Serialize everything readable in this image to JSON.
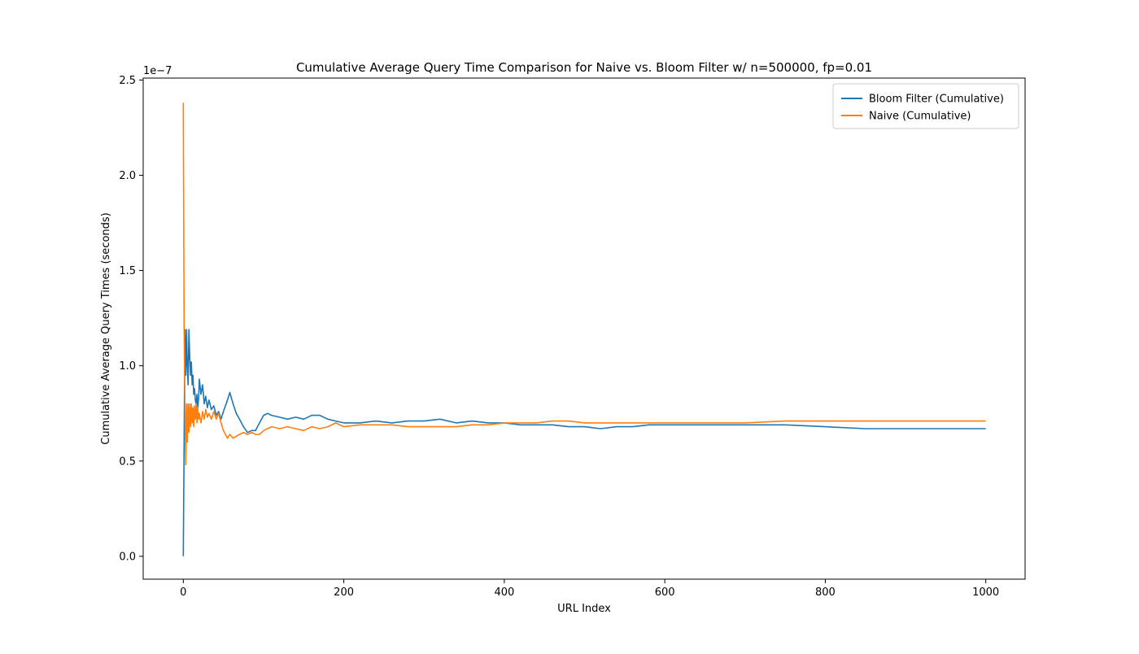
{
  "chart_data": {
    "type": "line",
    "title": "Cumulative Average Query Time Comparison for Naive vs. Bloom Filter w/ n=500000, fp=0.01",
    "xlabel": "URL Index",
    "ylabel": "Cumulative Average Query Times  (seconds)",
    "y_offset_label": "1e−7",
    "xlim": [
      -50,
      1049
    ],
    "ylim": [
      -0.12,
      2.51
    ],
    "x_ticks": [
      0,
      200,
      400,
      600,
      800,
      1000
    ],
    "x_tick_labels": [
      "0",
      "200",
      "400",
      "600",
      "800",
      "1000"
    ],
    "y_ticks": [
      0,
      0.5,
      1.0,
      1.5,
      2.0,
      2.5
    ],
    "y_tick_labels": [
      "0.0",
      "0.5",
      "1.0",
      "1.5",
      "2.0",
      "2.5"
    ],
    "y_scale_note": "values are in units of 1e-7 seconds",
    "grid": false,
    "legend_position": "top-right",
    "series": [
      {
        "name": "Bloom Filter (Cumulative)",
        "color": "#1f77b4",
        "x": [
          0,
          1,
          2,
          3,
          4,
          5,
          6,
          7,
          8,
          9,
          10,
          11,
          12,
          13,
          14,
          15,
          16,
          17,
          18,
          19,
          20,
          22,
          24,
          26,
          28,
          30,
          32,
          35,
          38,
          41,
          44,
          47,
          50,
          55,
          58,
          62,
          66,
          70,
          75,
          80,
          85,
          90,
          95,
          100,
          105,
          110,
          120,
          130,
          140,
          150,
          160,
          170,
          180,
          190,
          200,
          220,
          240,
          260,
          280,
          300,
          320,
          340,
          360,
          380,
          400,
          420,
          440,
          460,
          480,
          500,
          520,
          540,
          560,
          580,
          600,
          650,
          700,
          750,
          800,
          850,
          900,
          950,
          1000
        ],
        "y": [
          0.0,
          0.6,
          1.19,
          0.95,
          1.19,
          1.0,
          0.9,
          1.19,
          1.05,
          0.95,
          1.02,
          0.9,
          0.95,
          0.85,
          0.88,
          0.82,
          0.8,
          0.85,
          0.78,
          0.83,
          0.93,
          0.85,
          0.9,
          0.8,
          0.84,
          0.78,
          0.82,
          0.77,
          0.79,
          0.74,
          0.76,
          0.72,
          0.76,
          0.82,
          0.86,
          0.8,
          0.75,
          0.72,
          0.68,
          0.65,
          0.66,
          0.66,
          0.7,
          0.74,
          0.75,
          0.74,
          0.73,
          0.72,
          0.73,
          0.72,
          0.74,
          0.74,
          0.72,
          0.71,
          0.7,
          0.7,
          0.71,
          0.7,
          0.71,
          0.71,
          0.72,
          0.7,
          0.71,
          0.7,
          0.7,
          0.69,
          0.69,
          0.69,
          0.68,
          0.68,
          0.67,
          0.68,
          0.68,
          0.69,
          0.69,
          0.69,
          0.69,
          0.69,
          0.68,
          0.67,
          0.67,
          0.67,
          0.67
        ]
      },
      {
        "name": "Naive (Cumulative)",
        "color": "#ff7f0e",
        "x": [
          0,
          1,
          2,
          3,
          4,
          5,
          6,
          7,
          8,
          9,
          10,
          11,
          12,
          13,
          14,
          15,
          16,
          17,
          18,
          19,
          20,
          22,
          24,
          26,
          28,
          30,
          32,
          35,
          38,
          41,
          44,
          47,
          50,
          55,
          58,
          62,
          66,
          70,
          75,
          80,
          85,
          90,
          95,
          100,
          105,
          110,
          120,
          130,
          140,
          150,
          160,
          170,
          180,
          190,
          200,
          220,
          240,
          260,
          280,
          300,
          320,
          340,
          360,
          380,
          400,
          420,
          440,
          460,
          480,
          500,
          520,
          540,
          560,
          580,
          600,
          650,
          700,
          750,
          800,
          850,
          900,
          950,
          1000
        ],
        "y": [
          2.38,
          1.2,
          0.8,
          0.48,
          0.8,
          0.6,
          0.8,
          0.65,
          0.8,
          0.68,
          0.8,
          0.7,
          0.78,
          0.68,
          0.79,
          0.72,
          0.8,
          0.7,
          0.78,
          0.72,
          0.75,
          0.7,
          0.76,
          0.72,
          0.77,
          0.73,
          0.75,
          0.72,
          0.76,
          0.72,
          0.75,
          0.7,
          0.66,
          0.62,
          0.64,
          0.62,
          0.63,
          0.64,
          0.65,
          0.64,
          0.65,
          0.64,
          0.64,
          0.66,
          0.67,
          0.68,
          0.67,
          0.68,
          0.67,
          0.66,
          0.68,
          0.67,
          0.68,
          0.7,
          0.68,
          0.69,
          0.69,
          0.69,
          0.68,
          0.68,
          0.68,
          0.68,
          0.69,
          0.69,
          0.7,
          0.7,
          0.7,
          0.71,
          0.71,
          0.7,
          0.7,
          0.7,
          0.7,
          0.7,
          0.7,
          0.7,
          0.7,
          0.71,
          0.71,
          0.71,
          0.71,
          0.71,
          0.71
        ]
      }
    ]
  }
}
